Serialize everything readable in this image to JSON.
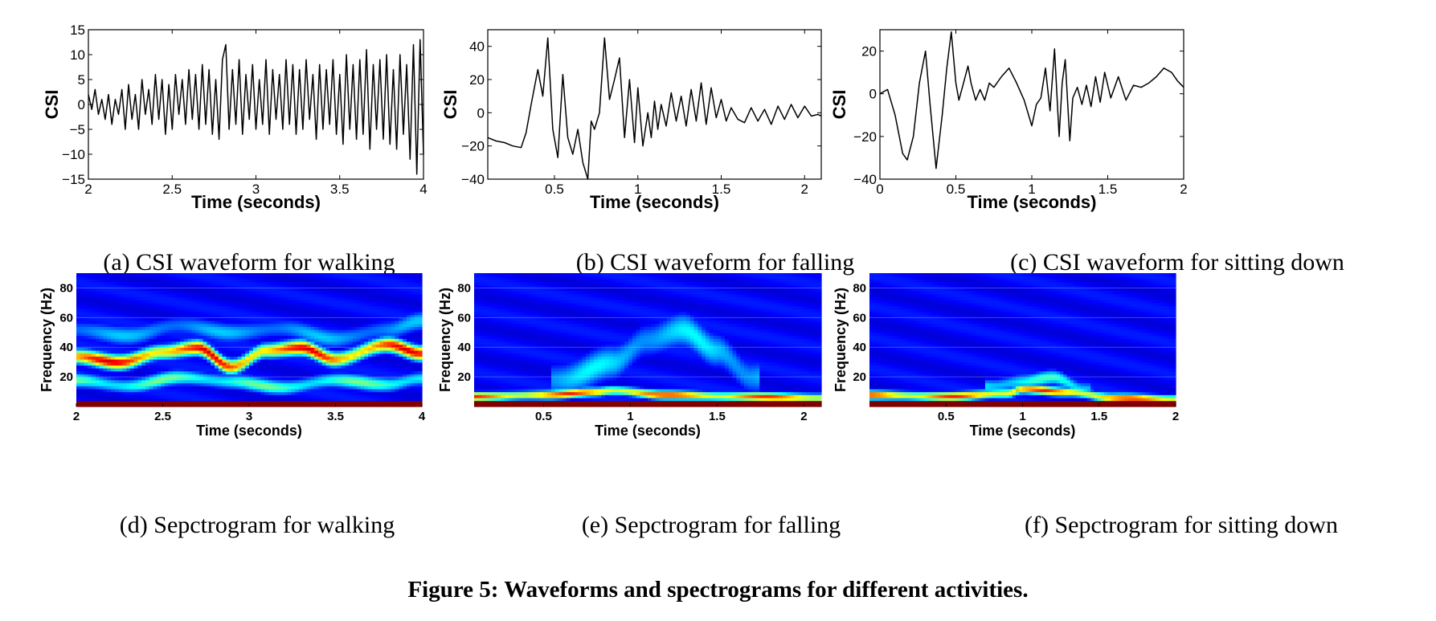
{
  "figure_caption": "Figure 5: Waveforms and spectrograms for different activities.",
  "chart_data": [
    {
      "id": "a",
      "type": "line",
      "caption": "(a) CSI waveform for walking",
      "xlabel": "Time (seconds)",
      "ylabel": "CSI",
      "xlim": [
        2,
        4
      ],
      "ylim": [
        -15,
        15
      ],
      "xticks": [
        2,
        2.5,
        3,
        3.5,
        4
      ],
      "xtick_labels": [
        "2",
        "2.5",
        "3",
        "3.5",
        "4"
      ],
      "yticks": [
        -15,
        -10,
        -5,
        0,
        5,
        10,
        15
      ],
      "ytick_labels": [
        "−15",
        "−10",
        "−5",
        "0",
        "5",
        "10",
        "15"
      ],
      "series": [
        {
          "x": [
            2.0,
            2.02,
            2.04,
            2.06,
            2.08,
            2.1,
            2.12,
            2.14,
            2.16,
            2.18,
            2.2,
            2.22,
            2.24,
            2.26,
            2.28,
            2.3,
            2.32,
            2.34,
            2.36,
            2.38,
            2.4,
            2.42,
            2.44,
            2.46,
            2.48,
            2.5,
            2.52,
            2.54,
            2.56,
            2.58,
            2.6,
            2.62,
            2.64,
            2.66,
            2.68,
            2.7,
            2.72,
            2.74,
            2.76,
            2.78,
            2.8,
            2.82,
            2.84,
            2.86,
            2.88,
            2.9,
            2.92,
            2.94,
            2.96,
            2.98,
            3.0,
            3.02,
            3.04,
            3.06,
            3.08,
            3.1,
            3.12,
            3.14,
            3.16,
            3.18,
            3.2,
            3.22,
            3.24,
            3.26,
            3.28,
            3.3,
            3.32,
            3.34,
            3.36,
            3.38,
            3.4,
            3.42,
            3.44,
            3.46,
            3.48,
            3.5,
            3.52,
            3.54,
            3.56,
            3.58,
            3.6,
            3.62,
            3.64,
            3.66,
            3.68,
            3.7,
            3.72,
            3.74,
            3.76,
            3.78,
            3.8,
            3.82,
            3.84,
            3.86,
            3.88,
            3.9,
            3.92,
            3.94,
            3.96,
            3.98,
            4.0
          ],
          "y": [
            2,
            -1,
            3,
            -2,
            1,
            -3,
            2,
            -4,
            1,
            -2,
            3,
            -5,
            4,
            -3,
            2,
            -5,
            5,
            -2,
            3,
            -4,
            6,
            -3,
            5,
            -6,
            4,
            -5,
            6,
            -2,
            5,
            -4,
            7,
            -3,
            6,
            -5,
            8,
            -4,
            7,
            -6,
            5,
            -7,
            9,
            12,
            -5,
            7,
            -4,
            9,
            -6,
            6,
            -3,
            8,
            -5,
            5,
            -4,
            9,
            -6,
            7,
            -3,
            6,
            -5,
            9,
            -4,
            8,
            -6,
            7,
            -5,
            9,
            -3,
            6,
            -7,
            8,
            -5,
            7,
            -4,
            9,
            -6,
            6,
            -8,
            10,
            -5,
            8,
            -7,
            9,
            -6,
            11,
            -9,
            8,
            -5,
            9,
            -7,
            10,
            -8,
            7,
            -9,
            10,
            -6,
            8,
            -11,
            12,
            -14,
            13,
            -10
          ]
        }
      ]
    },
    {
      "id": "b",
      "type": "line",
      "caption": "(b) CSI waveform for falling",
      "xlabel": "Time (seconds)",
      "ylabel": "CSI",
      "xlim": [
        0.1,
        2.1
      ],
      "ylim": [
        -40,
        50
      ],
      "xticks": [
        0.5,
        1,
        1.5,
        2
      ],
      "xtick_labels": [
        "0.5",
        "1",
        "1.5",
        "2"
      ],
      "yticks": [
        -40,
        -20,
        0,
        20,
        40
      ],
      "ytick_labels": [
        "−40",
        "−20",
        "0",
        "20",
        "40"
      ],
      "series": [
        {
          "x": [
            0.1,
            0.15,
            0.2,
            0.25,
            0.3,
            0.33,
            0.36,
            0.4,
            0.43,
            0.46,
            0.49,
            0.52,
            0.55,
            0.58,
            0.61,
            0.64,
            0.67,
            0.7,
            0.72,
            0.74,
            0.77,
            0.8,
            0.83,
            0.86,
            0.89,
            0.92,
            0.95,
            0.98,
            1.0,
            1.03,
            1.06,
            1.08,
            1.1,
            1.12,
            1.14,
            1.17,
            1.2,
            1.23,
            1.26,
            1.29,
            1.32,
            1.35,
            1.38,
            1.41,
            1.44,
            1.47,
            1.5,
            1.53,
            1.56,
            1.6,
            1.64,
            1.68,
            1.72,
            1.76,
            1.8,
            1.84,
            1.88,
            1.92,
            1.96,
            2.0,
            2.04,
            2.08,
            2.1
          ],
          "y": [
            -15,
            -17,
            -18,
            -20,
            -21,
            -12,
            5,
            26,
            10,
            45,
            -10,
            -27,
            23,
            -15,
            -25,
            -10,
            -30,
            -40,
            -5,
            -10,
            0,
            45,
            8,
            20,
            33,
            -15,
            20,
            -18,
            15,
            -20,
            0,
            -15,
            7,
            -10,
            5,
            -8,
            12,
            -5,
            10,
            -8,
            14,
            -5,
            18,
            -7,
            15,
            -3,
            8,
            -5,
            3,
            -4,
            -6,
            3,
            -5,
            2,
            -7,
            4,
            -4,
            5,
            -3,
            4,
            -2,
            -1,
            -2
          ]
        }
      ]
    },
    {
      "id": "c",
      "type": "line",
      "caption": "(c) CSI waveform for sitting down",
      "xlabel": "Time (seconds)",
      "ylabel": "CSI",
      "xlim": [
        0,
        2
      ],
      "ylim": [
        -40,
        30
      ],
      "xticks": [
        0,
        0.5,
        1,
        1.5,
        2
      ],
      "xtick_labels": [
        "0",
        "0.5",
        "1",
        "1.5",
        "2"
      ],
      "yticks": [
        -40,
        -20,
        0,
        20
      ],
      "ytick_labels": [
        "−40",
        "−20",
        "0",
        "20"
      ],
      "series": [
        {
          "x": [
            0.0,
            0.05,
            0.1,
            0.15,
            0.18,
            0.22,
            0.26,
            0.3,
            0.33,
            0.37,
            0.41,
            0.44,
            0.47,
            0.5,
            0.52,
            0.55,
            0.58,
            0.6,
            0.63,
            0.66,
            0.69,
            0.72,
            0.75,
            0.8,
            0.85,
            0.9,
            0.95,
            1.0,
            1.03,
            1.06,
            1.09,
            1.12,
            1.15,
            1.18,
            1.2,
            1.22,
            1.25,
            1.27,
            1.3,
            1.33,
            1.36,
            1.39,
            1.42,
            1.45,
            1.48,
            1.52,
            1.57,
            1.62,
            1.67,
            1.72,
            1.77,
            1.82,
            1.87,
            1.92,
            1.96,
            2.0
          ],
          "y": [
            0,
            2,
            -10,
            -28,
            -31,
            -20,
            5,
            20,
            -5,
            -35,
            -10,
            12,
            29,
            5,
            -3,
            5,
            13,
            5,
            -3,
            2,
            -3,
            5,
            3,
            8,
            12,
            5,
            -3,
            -15,
            -5,
            -2,
            12,
            -8,
            21,
            -20,
            5,
            16,
            -22,
            -2,
            3,
            -5,
            4,
            -6,
            8,
            -4,
            10,
            -2,
            8,
            -3,
            4,
            3,
            5,
            8,
            12,
            10,
            6,
            3
          ]
        }
      ]
    },
    {
      "id": "d",
      "type": "heatmap",
      "caption": "(d) Sepctrogram for walking",
      "xlabel": "Time (seconds)",
      "ylabel": "Frequency (Hz)",
      "xlim": [
        2,
        4
      ],
      "ylim": [
        0,
        90
      ],
      "xticks": [
        2,
        2.5,
        3,
        3.5,
        4
      ],
      "xtick_labels": [
        "2",
        "2.5",
        "3",
        "3.5",
        "4"
      ],
      "yticks": [
        20,
        40,
        60,
        80
      ],
      "ytick_labels": [
        "20",
        "40",
        "60",
        "80"
      ],
      "colormap": "jet",
      "ridges": [
        {
          "name": "main",
          "x": [
            2.0,
            2.25,
            2.5,
            2.7,
            2.9,
            3.1,
            3.3,
            3.5,
            3.8,
            4.0
          ],
          "y": [
            34,
            30,
            37,
            40,
            27,
            38,
            40,
            32,
            42,
            36
          ],
          "intensity": 0.92,
          "width": 5
        },
        {
          "name": "lower",
          "x": [
            2.0,
            2.3,
            2.6,
            2.9,
            3.2,
            3.5,
            3.8,
            4.0
          ],
          "y": [
            18,
            14,
            20,
            17,
            13,
            18,
            15,
            19
          ],
          "intensity": 0.5,
          "width": 5
        },
        {
          "name": "upper",
          "x": [
            2.0,
            2.3,
            2.6,
            2.9,
            3.2,
            3.5,
            3.8,
            4.0
          ],
          "y": [
            52,
            48,
            55,
            50,
            53,
            46,
            52,
            58
          ],
          "intensity": 0.33,
          "width": 7
        }
      ],
      "base_band": {
        "y_max": 4,
        "intensity": 1.0
      }
    },
    {
      "id": "e",
      "type": "heatmap",
      "caption": "(e) Sepctrogram for falling",
      "xlabel": "Time (seconds)",
      "ylabel": "Frequency (Hz)",
      "xlim": [
        0.1,
        2.1
      ],
      "ylim": [
        0,
        90
      ],
      "xticks": [
        0.5,
        1,
        1.5,
        2
      ],
      "xtick_labels": [
        "0.5",
        "1",
        "1.5",
        "2"
      ],
      "yticks": [
        20,
        40,
        60,
        80
      ],
      "ytick_labels": [
        "20",
        "40",
        "60",
        "80"
      ],
      "colormap": "jet",
      "ridges": [
        {
          "name": "low",
          "x": [
            0.1,
            0.5,
            0.8,
            0.9,
            1.2,
            1.6,
            2.1
          ],
          "y": [
            7,
            8,
            10,
            11,
            8,
            7,
            6
          ],
          "intensity": 0.85,
          "width": 3
        },
        {
          "name": "burst",
          "x": [
            0.6,
            0.9,
            1.1,
            1.3,
            1.5,
            1.7
          ],
          "y": [
            18,
            30,
            45,
            52,
            38,
            20
          ],
          "intensity": 0.38,
          "width": 12
        }
      ],
      "base_band": {
        "y_max": 3,
        "intensity": 1.0
      }
    },
    {
      "id": "f",
      "type": "heatmap",
      "caption": "(f) Sepctrogram for sitting down",
      "xlabel": "Time (seconds)",
      "ylabel": "Frequency (Hz)",
      "xlim": [
        0,
        2
      ],
      "ylim": [
        0,
        90
      ],
      "xticks": [
        0.5,
        1,
        1.5,
        2
      ],
      "xtick_labels": [
        "0.5",
        "1",
        "1.5",
        "2"
      ],
      "yticks": [
        20,
        40,
        60,
        80
      ],
      "ytick_labels": [
        "20",
        "40",
        "60",
        "80"
      ],
      "colormap": "jet",
      "ridges": [
        {
          "name": "low",
          "x": [
            0.0,
            0.5,
            0.9,
            1.0,
            1.3,
            1.6,
            2.0
          ],
          "y": [
            8,
            7,
            9,
            12,
            10,
            6,
            5
          ],
          "intensity": 0.85,
          "width": 3
        },
        {
          "name": "bump",
          "x": [
            0.8,
            1.0,
            1.2,
            1.4
          ],
          "y": [
            14,
            17,
            20,
            12
          ],
          "intensity": 0.45,
          "width": 5
        }
      ],
      "base_band": {
        "y_max": 3,
        "intensity": 1.0
      }
    }
  ]
}
